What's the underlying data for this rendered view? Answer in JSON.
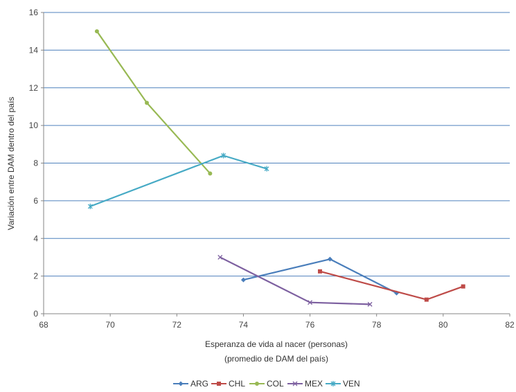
{
  "chart_data": {
    "type": "line",
    "xlabel_line1": "Esperanza de vida al nacer (personas)",
    "xlabel_line2": "(promedio de DAM del país)",
    "ylabel": "Variación entre DAM dentro del país",
    "xlim": [
      68,
      82
    ],
    "ylim": [
      0,
      16
    ],
    "x_ticks": [
      68,
      70,
      72,
      74,
      76,
      78,
      80,
      82
    ],
    "y_ticks": [
      0,
      2,
      4,
      6,
      8,
      10,
      12,
      14,
      16
    ],
    "grid": "horizontal",
    "legend_position": "bottom",
    "series": [
      {
        "name": "ARG",
        "color": "#4a7ebb",
        "marker": "diamond",
        "points": [
          [
            74.0,
            1.8
          ],
          [
            76.6,
            2.9
          ],
          [
            78.6,
            1.1
          ]
        ]
      },
      {
        "name": "CHL",
        "color": "#be4b48",
        "marker": "square",
        "points": [
          [
            76.3,
            2.25
          ],
          [
            79.5,
            0.75
          ],
          [
            80.6,
            1.45
          ]
        ]
      },
      {
        "name": "COL",
        "color": "#98b954",
        "marker": "circle",
        "points": [
          [
            69.6,
            15.0
          ],
          [
            71.1,
            11.2
          ],
          [
            73.0,
            7.45
          ]
        ]
      },
      {
        "name": "MEX",
        "color": "#7d60a0",
        "marker": "x",
        "points": [
          [
            73.3,
            3.0
          ],
          [
            76.0,
            0.6
          ],
          [
            77.8,
            0.5
          ]
        ]
      },
      {
        "name": "VEN",
        "color": "#46aac5",
        "marker": "star",
        "points": [
          [
            69.4,
            5.7
          ],
          [
            73.4,
            8.4
          ],
          [
            74.7,
            7.7
          ]
        ]
      }
    ]
  }
}
